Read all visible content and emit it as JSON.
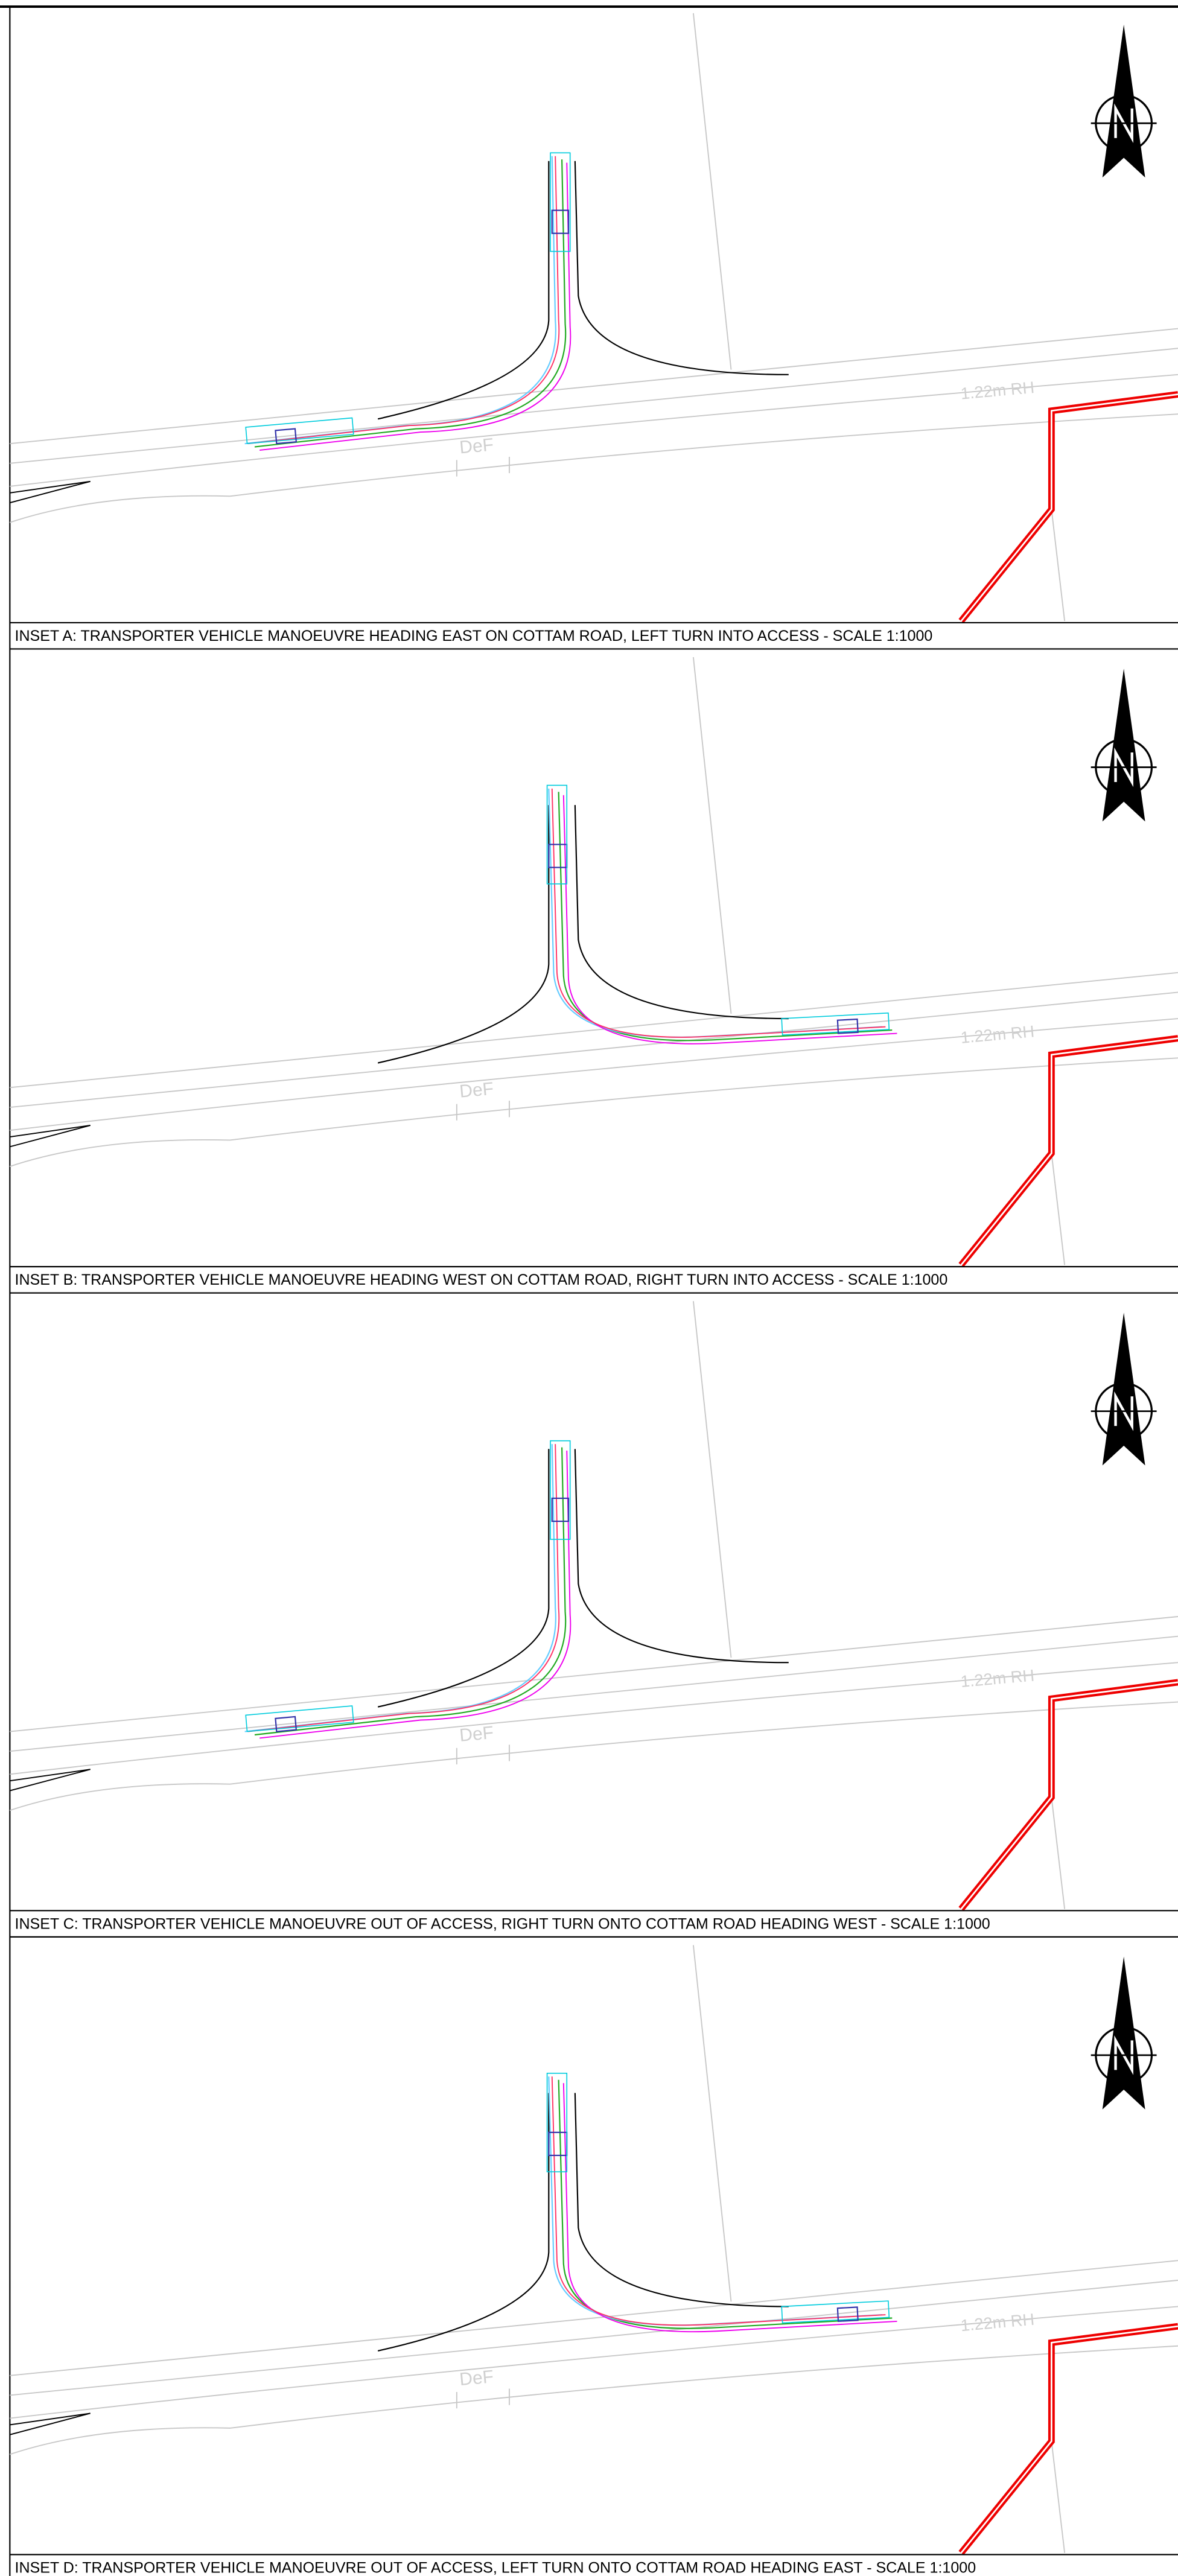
{
  "insets": [
    {
      "caption": "INSET A: TRANSPORTER VEHICLE MANOEUVRE HEADING EAST ON COTTAM ROAD, LEFT TURN INTO ACCESS - SCALE 1:1000"
    },
    {
      "caption": "INSET B: TRANSPORTER VEHICLE MANOEUVRE HEADING WEST ON COTTAM ROAD, RIGHT TURN INTO ACCESS - SCALE 1:1000"
    },
    {
      "caption": "INSET C: TRANSPORTER VEHICLE MANOEUVRE OUT OF ACCESS, RIGHT TURN ONTO COTTAM ROAD HEADING WEST - SCALE 1:1000"
    },
    {
      "caption": "INSET D: TRANSPORTER VEHICLE MANOEUVRE OUT OF ACCESS, LEFT TURN ONTO COTTAM ROAD HEADING EAST - SCALE 1:1000"
    }
  ],
  "background_labels": {
    "road": "1.22m RH",
    "boundary": "DeF"
  }
}
